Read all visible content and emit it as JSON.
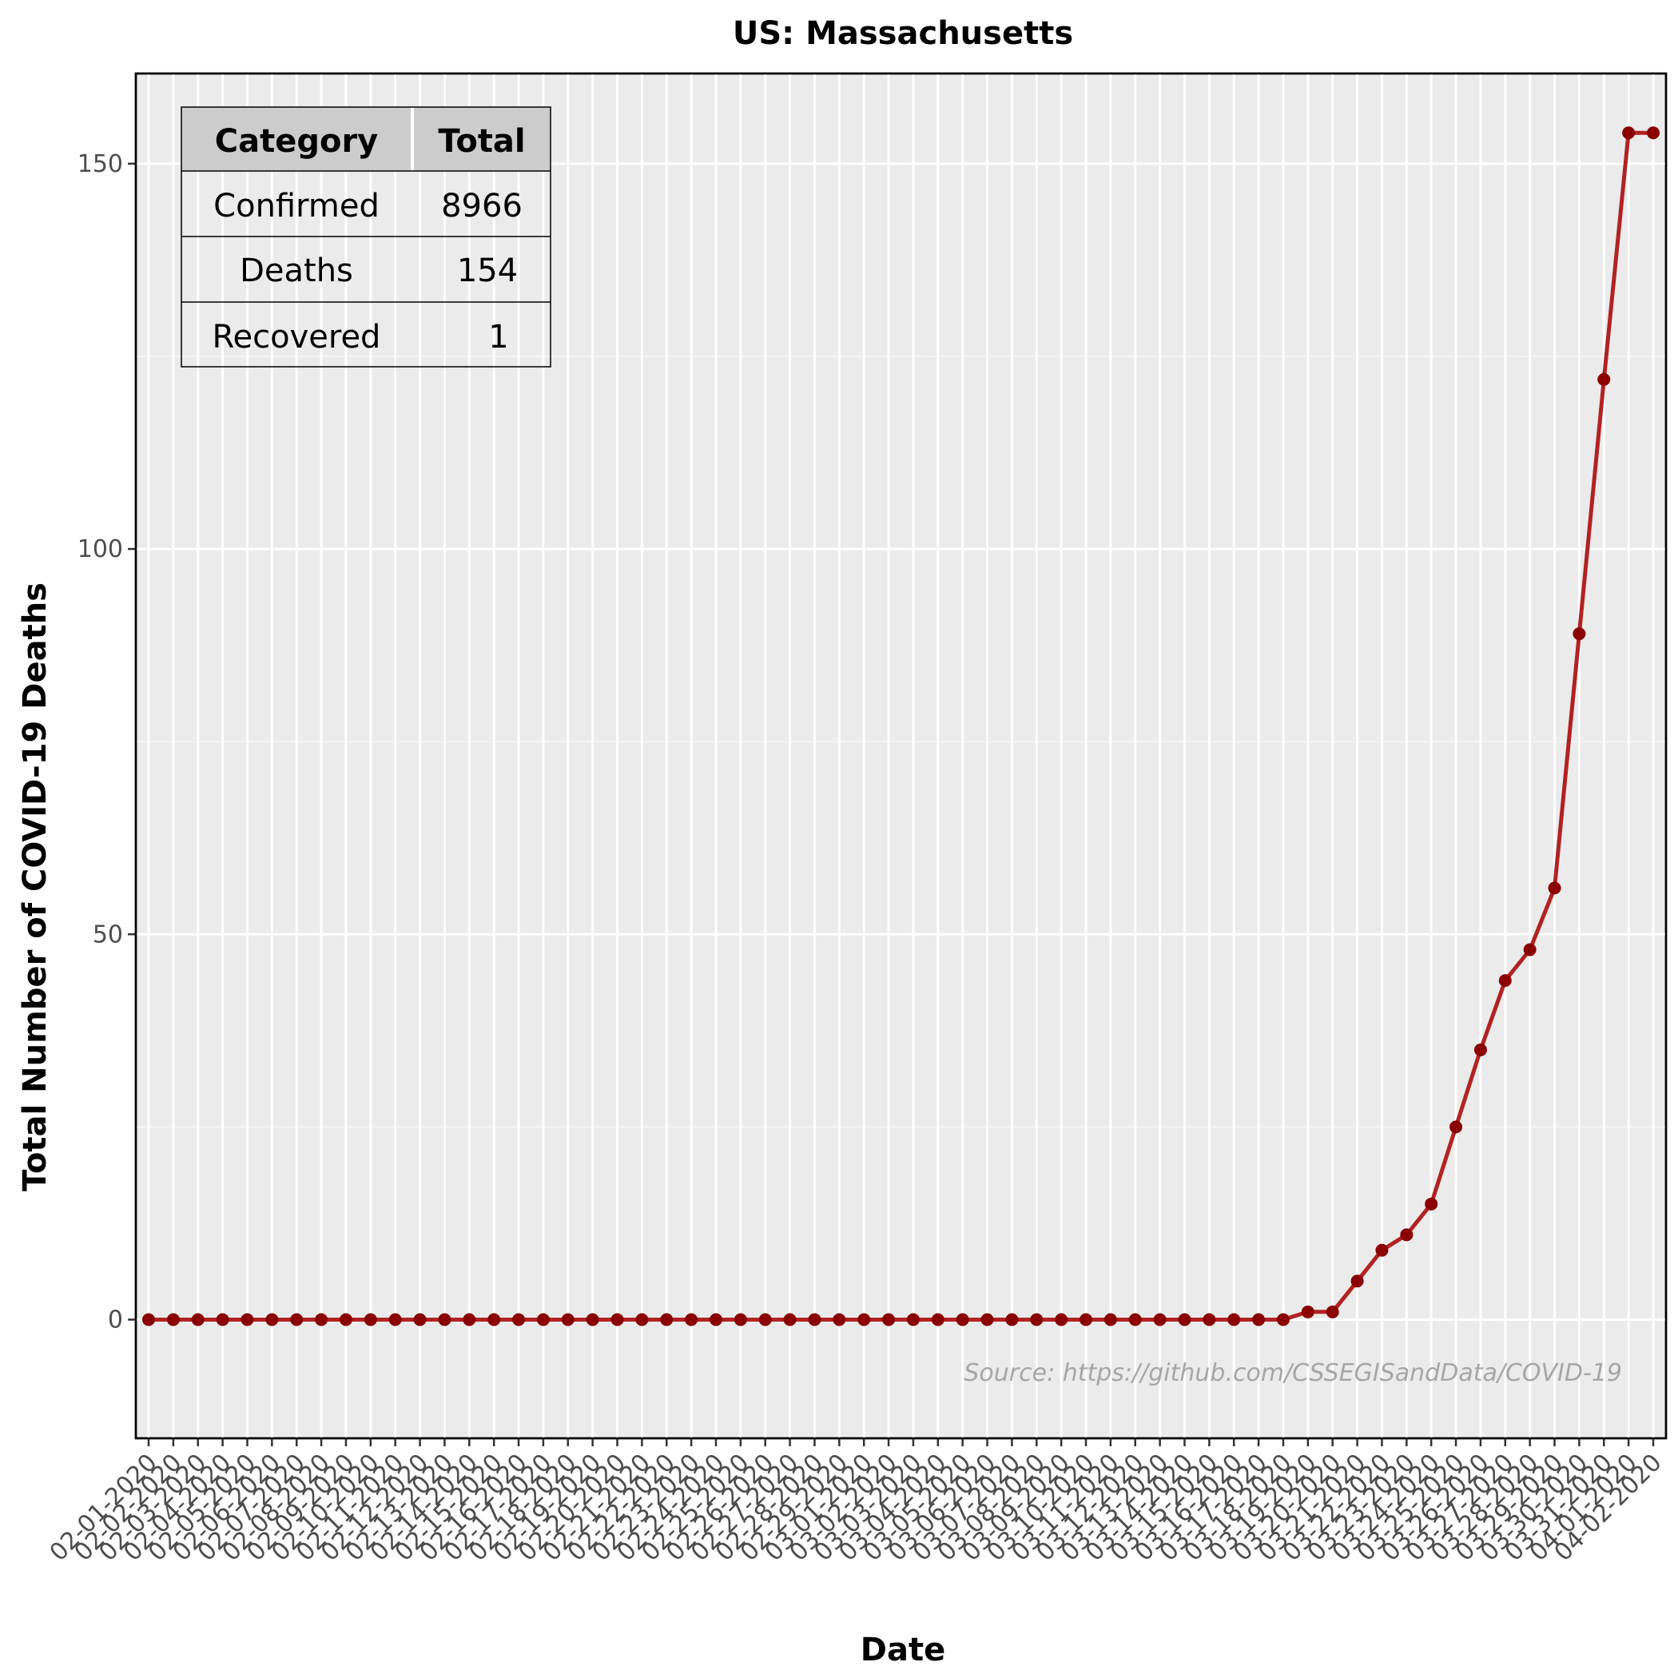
{
  "chart_data": {
    "type": "line",
    "title": "US: Massachusetts",
    "xlabel": "Date",
    "ylabel": "Total Number of COVID-19 Deaths",
    "source": "Source: https://github.com/CSSEGISandData/COVID-19",
    "x": [
      "02-01-2020",
      "02-02-2020",
      "02-03-2020",
      "02-04-2020",
      "02-05-2020",
      "02-06-2020",
      "02-07-2020",
      "02-08-2020",
      "02-09-2020",
      "02-10-2020",
      "02-11-2020",
      "02-12-2020",
      "02-13-2020",
      "02-14-2020",
      "02-15-2020",
      "02-16-2020",
      "02-17-2020",
      "02-18-2020",
      "02-19-2020",
      "02-20-2020",
      "02-21-2020",
      "02-22-2020",
      "02-23-2020",
      "02-24-2020",
      "02-25-2020",
      "02-26-2020",
      "02-27-2020",
      "02-28-2020",
      "02-29-2020",
      "03-01-2020",
      "03-02-2020",
      "03-03-2020",
      "03-04-2020",
      "03-05-2020",
      "03-06-2020",
      "03-07-2020",
      "03-08-2020",
      "03-09-2020",
      "03-10-2020",
      "03-11-2020",
      "03-12-2020",
      "03-13-2020",
      "03-14-2020",
      "03-15-2020",
      "03-16-2020",
      "03-17-2020",
      "03-18-2020",
      "03-19-2020",
      "03-20-2020",
      "03-21-2020",
      "03-22-2020",
      "03-23-2020",
      "03-24-2020",
      "03-25-2020",
      "03-26-2020",
      "03-27-2020",
      "03-28-2020",
      "03-29-2020",
      "03-30-2020",
      "03-31-2020",
      "04-01-2020",
      "04-02-2020"
    ],
    "y": [
      0,
      0,
      0,
      0,
      0,
      0,
      0,
      0,
      0,
      0,
      0,
      0,
      0,
      0,
      0,
      0,
      0,
      0,
      0,
      0,
      0,
      0,
      0,
      0,
      0,
      0,
      0,
      0,
      0,
      0,
      0,
      0,
      0,
      0,
      0,
      0,
      0,
      0,
      0,
      0,
      0,
      0,
      0,
      0,
      0,
      0,
      0,
      1,
      1,
      5,
      9,
      11,
      15,
      25,
      35,
      44,
      48,
      56,
      89,
      122,
      154,
      154
    ],
    "yticks": [
      0,
      50,
      100,
      150
    ],
    "ylim": [
      -15.4,
      161.7
    ],
    "grid": true,
    "line_color": "#b22222",
    "point_color": "#8b0000",
    "panel_bg": "#ebebeb"
  },
  "summary_table": {
    "headers": [
      "Category",
      "Total"
    ],
    "rows": [
      [
        "Confirmed",
        "8966"
      ],
      [
        "Deaths",
        "154"
      ],
      [
        "Recovered",
        "1"
      ]
    ]
  }
}
